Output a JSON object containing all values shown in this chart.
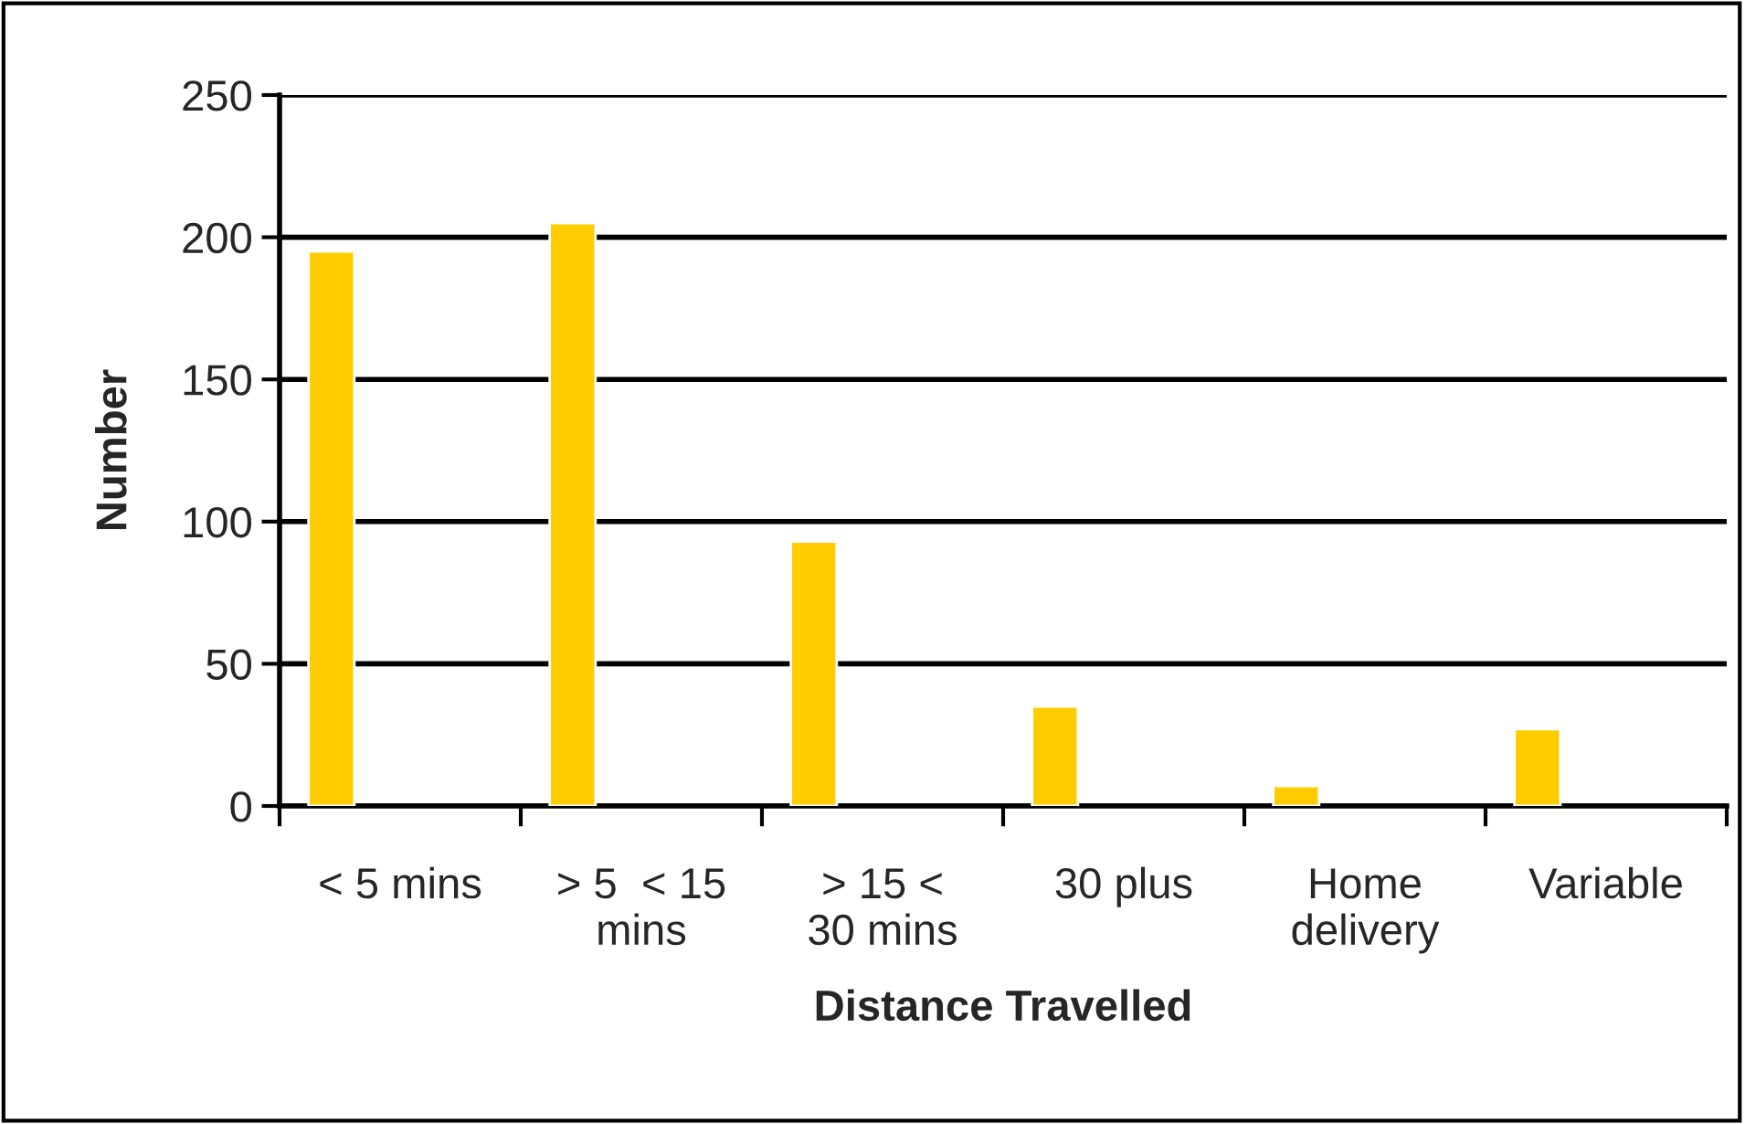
{
  "chart_data": {
    "type": "bar",
    "xlabel": "Distance Travelled",
    "ylabel": "Number",
    "categories": [
      "< 5 mins",
      "> 5  < 15\nmins",
      "> 15 <\n30 mins",
      "30 plus",
      "Home\ndelivery",
      "Variable"
    ],
    "values": [
      195,
      205,
      93,
      35,
      7,
      27
    ],
    "color": "#ffcc00",
    "ylim": [
      0,
      250
    ],
    "yticks": [
      0,
      50,
      100,
      150,
      200,
      250
    ],
    "grid": "y",
    "legend": false
  }
}
